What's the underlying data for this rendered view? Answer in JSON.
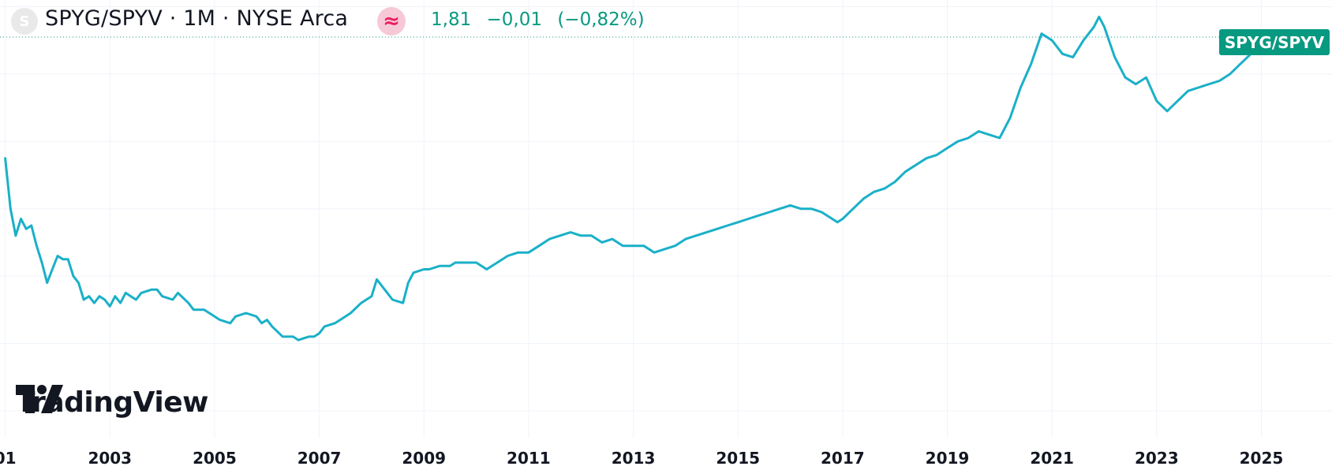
{
  "header": {
    "symbol_initial": "S",
    "title": "SPYG/SPYV · 1M · NYSE Arca",
    "approx_icon": "≈",
    "last_price": "1,81",
    "change": "−0,01",
    "change_pct": "(−0,82%)"
  },
  "price_tag": "SPYG/SPYV",
  "logo_text": "TradingView",
  "colors": {
    "line": "#1ab0c8",
    "positive": "#089981",
    "badge_bg": "#f7c8d6",
    "badge_fg": "#e91e63",
    "grid": "#f0f3fa",
    "axis_text": "#131722"
  },
  "chart_data": {
    "type": "line",
    "title": "",
    "xlabel": "",
    "ylabel": "",
    "x_ticks": [
      "01",
      "2003",
      "2005",
      "2007",
      "2009",
      "2011",
      "2013",
      "2015",
      "2017",
      "2019",
      "2021",
      "2023",
      "2025"
    ],
    "xlim": [
      2000.9,
      2026.35
    ],
    "ylim": [
      0.62,
      1.92
    ],
    "last_value": 1.81,
    "grid": true,
    "legend": "none",
    "series": [
      {
        "x": [
          2001.0,
          2001.1,
          2001.2,
          2001.3,
          2001.4,
          2001.5,
          2001.6,
          2001.7,
          2001.8,
          2001.9,
          2002.0,
          2002.1,
          2002.2,
          2002.3,
          2002.4,
          2002.5,
          2002.6,
          2002.7,
          2002.8,
          2002.9,
          2003.0,
          2003.1,
          2003.2,
          2003.3,
          2003.4,
          2003.5,
          2003.6,
          2003.8,
          2003.9,
          2004.0,
          2004.2,
          2004.3,
          2004.5,
          2004.6,
          2004.8,
          2004.9,
          2005.0,
          2005.1,
          2005.3,
          2005.4,
          2005.6,
          2005.8,
          2005.9,
          2006.0,
          2006.1,
          2006.3,
          2006.5,
          2006.6,
          2006.8,
          2006.9,
          2007.0,
          2007.1,
          2007.3,
          2007.4,
          2007.6,
          2007.8,
          2008.0,
          2008.1,
          2008.3,
          2008.4,
          2008.6,
          2008.7,
          2008.8,
          2009.0,
          2009.1,
          2009.3,
          2009.5,
          2009.6,
          2009.8,
          2010.0,
          2010.2,
          2010.4,
          2010.6,
          2010.8,
          2011.0,
          2011.2,
          2011.4,
          2011.6,
          2011.8,
          2012.0,
          2012.2,
          2012.4,
          2012.6,
          2012.8,
          2013.0,
          2013.2,
          2013.4,
          2013.6,
          2013.8,
          2014.0,
          2014.2,
          2014.4,
          2014.6,
          2014.8,
          2015.0,
          2015.2,
          2015.4,
          2015.6,
          2015.8,
          2016.0,
          2016.2,
          2016.4,
          2016.6,
          2016.8,
          2016.9,
          2017.0,
          2017.2,
          2017.4,
          2017.6,
          2017.8,
          2018.0,
          2018.2,
          2018.4,
          2018.6,
          2018.8,
          2019.0,
          2019.2,
          2019.4,
          2019.6,
          2019.8,
          2020.0,
          2020.2,
          2020.4,
          2020.6,
          2020.8,
          2021.0,
          2021.2,
          2021.4,
          2021.6,
          2021.8,
          2021.9,
          2022.0,
          2022.2,
          2022.4,
          2022.6,
          2022.8,
          2023.0,
          2023.2,
          2023.4,
          2023.6,
          2023.8,
          2024.0,
          2024.2,
          2024.4,
          2024.6,
          2024.8,
          2025.0,
          2025.2,
          2025.4
        ],
        "y": [
          1.45,
          1.3,
          1.22,
          1.27,
          1.24,
          1.25,
          1.19,
          1.14,
          1.08,
          1.12,
          1.16,
          1.15,
          1.15,
          1.1,
          1.08,
          1.03,
          1.04,
          1.02,
          1.04,
          1.03,
          1.01,
          1.04,
          1.02,
          1.05,
          1.04,
          1.03,
          1.05,
          1.06,
          1.06,
          1.04,
          1.03,
          1.05,
          1.02,
          1.0,
          1.0,
          0.99,
          0.98,
          0.97,
          0.96,
          0.98,
          0.99,
          0.98,
          0.96,
          0.97,
          0.95,
          0.92,
          0.92,
          0.91,
          0.92,
          0.92,
          0.93,
          0.95,
          0.96,
          0.97,
          0.99,
          1.02,
          1.04,
          1.09,
          1.05,
          1.03,
          1.02,
          1.08,
          1.11,
          1.12,
          1.12,
          1.13,
          1.13,
          1.14,
          1.14,
          1.14,
          1.12,
          1.14,
          1.16,
          1.17,
          1.17,
          1.19,
          1.21,
          1.22,
          1.23,
          1.22,
          1.22,
          1.2,
          1.21,
          1.19,
          1.19,
          1.19,
          1.17,
          1.18,
          1.19,
          1.21,
          1.22,
          1.23,
          1.24,
          1.25,
          1.26,
          1.27,
          1.28,
          1.29,
          1.3,
          1.31,
          1.3,
          1.3,
          1.29,
          1.27,
          1.26,
          1.27,
          1.3,
          1.33,
          1.35,
          1.36,
          1.38,
          1.41,
          1.43,
          1.45,
          1.46,
          1.48,
          1.5,
          1.51,
          1.53,
          1.52,
          1.51,
          1.57,
          1.66,
          1.73,
          1.82,
          1.8,
          1.76,
          1.75,
          1.8,
          1.84,
          1.87,
          1.84,
          1.75,
          1.69,
          1.67,
          1.69,
          1.62,
          1.59,
          1.62,
          1.65,
          1.66,
          1.67,
          1.68,
          1.7,
          1.73,
          1.76,
          1.78,
          1.79,
          1.81
        ]
      }
    ]
  }
}
